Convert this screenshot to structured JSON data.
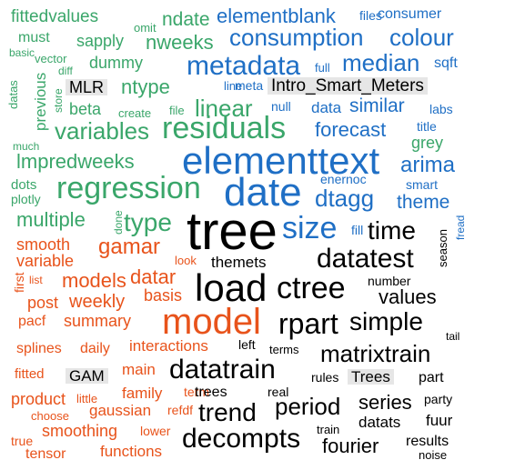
{
  "colors": {
    "green": "#3aa66a",
    "blue": "#1f6fc5",
    "black": "#000000",
    "orange": "#e8531b",
    "highlight_bg": "#e6e6e6"
  },
  "words": [
    {
      "text": "tree",
      "color": "black"
    },
    {
      "text": "elementtext",
      "color": "blue"
    },
    {
      "text": "date",
      "color": "blue"
    },
    {
      "text": "load",
      "color": "black"
    },
    {
      "text": "model",
      "color": "orange"
    },
    {
      "text": "residuals",
      "color": "green"
    },
    {
      "text": "regression",
      "color": "green"
    },
    {
      "text": "ctree",
      "color": "black"
    },
    {
      "text": "size",
      "color": "blue"
    },
    {
      "text": "metadata",
      "color": "blue"
    },
    {
      "text": "consumption",
      "color": "blue"
    },
    {
      "text": "colour",
      "color": "blue"
    },
    {
      "text": "datatrain",
      "color": "black"
    },
    {
      "text": "datatest",
      "color": "black"
    },
    {
      "text": "rpart",
      "color": "black"
    },
    {
      "text": "simple",
      "color": "black"
    },
    {
      "text": "trend",
      "color": "black"
    },
    {
      "text": "decompts",
      "color": "black"
    },
    {
      "text": "period",
      "color": "black"
    },
    {
      "text": "matrixtrain",
      "color": "black"
    },
    {
      "text": "linear",
      "color": "green"
    },
    {
      "text": "forecast",
      "color": "blue"
    },
    {
      "text": "variables",
      "color": "green"
    },
    {
      "text": "lmpredweeks",
      "color": "green"
    },
    {
      "text": "type",
      "color": "green"
    },
    {
      "text": "time",
      "color": "black"
    },
    {
      "text": "arima",
      "color": "blue"
    },
    {
      "text": "dtagg",
      "color": "blue"
    },
    {
      "text": "median",
      "color": "blue"
    },
    {
      "text": "similar",
      "color": "blue"
    },
    {
      "text": "ntype",
      "color": "green"
    },
    {
      "text": "multiple",
      "color": "green"
    },
    {
      "text": "models",
      "color": "orange"
    },
    {
      "text": "datar",
      "color": "orange"
    },
    {
      "text": "gamar",
      "color": "orange"
    },
    {
      "text": "values",
      "color": "black"
    },
    {
      "text": "series",
      "color": "black"
    },
    {
      "text": "fourier",
      "color": "black"
    },
    {
      "text": "elementblank",
      "color": "blue"
    },
    {
      "text": "nweeks",
      "color": "green"
    },
    {
      "text": "ndate",
      "color": "green"
    },
    {
      "text": "sapply",
      "color": "green"
    },
    {
      "text": "dummy",
      "color": "green"
    },
    {
      "text": "fittedvalues",
      "color": "green"
    },
    {
      "text": "must",
      "color": "green"
    },
    {
      "text": "consumer",
      "color": "blue"
    },
    {
      "text": "sqft",
      "color": "blue"
    },
    {
      "text": "files",
      "color": "blue"
    },
    {
      "text": "full",
      "color": "blue"
    },
    {
      "text": "omit",
      "color": "green"
    },
    {
      "text": "basic",
      "color": "green"
    },
    {
      "text": "vector",
      "color": "green"
    },
    {
      "text": "diff",
      "color": "green"
    },
    {
      "text": "datas",
      "color": "green"
    },
    {
      "text": "previous",
      "color": "green"
    },
    {
      "text": "store",
      "color": "green"
    },
    {
      "text": "beta",
      "color": "green"
    },
    {
      "text": "create",
      "color": "green"
    },
    {
      "text": "file",
      "color": "green"
    },
    {
      "text": "line",
      "color": "blue"
    },
    {
      "text": "meta",
      "color": "blue"
    },
    {
      "text": "null",
      "color": "blue"
    },
    {
      "text": "data",
      "color": "blue"
    },
    {
      "text": "labs",
      "color": "blue"
    },
    {
      "text": "title",
      "color": "blue"
    },
    {
      "text": "grey",
      "color": "green"
    },
    {
      "text": "enernoc",
      "color": "blue"
    },
    {
      "text": "smart",
      "color": "blue"
    },
    {
      "text": "theme",
      "color": "blue"
    },
    {
      "text": "much",
      "color": "green"
    },
    {
      "text": "dots",
      "color": "green"
    },
    {
      "text": "plotly",
      "color": "green"
    },
    {
      "text": "done",
      "color": "green"
    },
    {
      "text": "fill",
      "color": "blue"
    },
    {
      "text": "fread",
      "color": "blue"
    },
    {
      "text": "season",
      "color": "black"
    },
    {
      "text": "smooth",
      "color": "orange"
    },
    {
      "text": "variable",
      "color": "orange"
    },
    {
      "text": "first",
      "color": "orange"
    },
    {
      "text": "list",
      "color": "orange"
    },
    {
      "text": "look",
      "color": "orange"
    },
    {
      "text": "themets",
      "color": "black"
    },
    {
      "text": "number",
      "color": "black"
    },
    {
      "text": "basis",
      "color": "orange"
    },
    {
      "text": "post",
      "color": "orange"
    },
    {
      "text": "weekly",
      "color": "orange"
    },
    {
      "text": "pacf",
      "color": "orange"
    },
    {
      "text": "summary",
      "color": "orange"
    },
    {
      "text": "splines",
      "color": "orange"
    },
    {
      "text": "daily",
      "color": "orange"
    },
    {
      "text": "interactions",
      "color": "orange"
    },
    {
      "text": "left",
      "color": "black"
    },
    {
      "text": "terms",
      "color": "black"
    },
    {
      "text": "tail",
      "color": "black"
    },
    {
      "text": "fitted",
      "color": "orange"
    },
    {
      "text": "main",
      "color": "orange"
    },
    {
      "text": "rules",
      "color": "black"
    },
    {
      "text": "part",
      "color": "black"
    },
    {
      "text": "product",
      "color": "orange"
    },
    {
      "text": "little",
      "color": "orange"
    },
    {
      "text": "family",
      "color": "orange"
    },
    {
      "text": "term",
      "color": "orange"
    },
    {
      "text": "trees",
      "color": "black"
    },
    {
      "text": "real",
      "color": "black"
    },
    {
      "text": "party",
      "color": "black"
    },
    {
      "text": "choose",
      "color": "orange"
    },
    {
      "text": "gaussian",
      "color": "orange"
    },
    {
      "text": "refdf",
      "color": "orange"
    },
    {
      "text": "datats",
      "color": "black"
    },
    {
      "text": "fuur",
      "color": "black"
    },
    {
      "text": "smoothing",
      "color": "orange"
    },
    {
      "text": "lower",
      "color": "orange"
    },
    {
      "text": "train",
      "color": "black"
    },
    {
      "text": "true",
      "color": "orange"
    },
    {
      "text": "tensor",
      "color": "orange"
    },
    {
      "text": "functions",
      "color": "orange"
    },
    {
      "text": "results",
      "color": "black"
    },
    {
      "text": "noise",
      "color": "black"
    }
  ],
  "labels": [
    {
      "text": "MLR"
    },
    {
      "text": "Intro_Smart_Meters"
    },
    {
      "text": "GAM"
    },
    {
      "text": "Trees"
    }
  ]
}
